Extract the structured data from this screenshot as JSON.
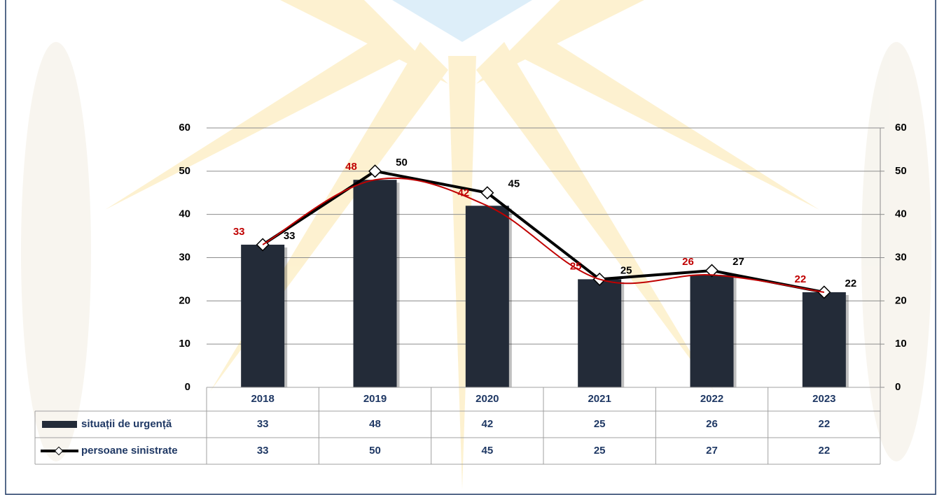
{
  "chart_data": {
    "type": "bar-line",
    "categories": [
      "2018",
      "2019",
      "2020",
      "2021",
      "2022",
      "2023"
    ],
    "series": [
      {
        "name": "situații de urgență",
        "type": "bar",
        "color": "#232b38",
        "label_color": "#c00000",
        "values": [
          33,
          48,
          42,
          25,
          26,
          22
        ]
      },
      {
        "name": "persoane sinistrate",
        "type": "line",
        "axis": "y2",
        "color": "#000000",
        "label_color": "#000000",
        "values": [
          33,
          50,
          45,
          25,
          27,
          22
        ]
      }
    ],
    "trendline_color": "#c00000",
    "ylim": [
      0,
      60
    ],
    "yticks": [
      0,
      10,
      20,
      30,
      40,
      50,
      60
    ],
    "y2lim": [
      0,
      60
    ],
    "y2ticks": [
      0,
      10,
      20,
      30,
      40,
      50,
      60
    ],
    "grid": true
  }
}
